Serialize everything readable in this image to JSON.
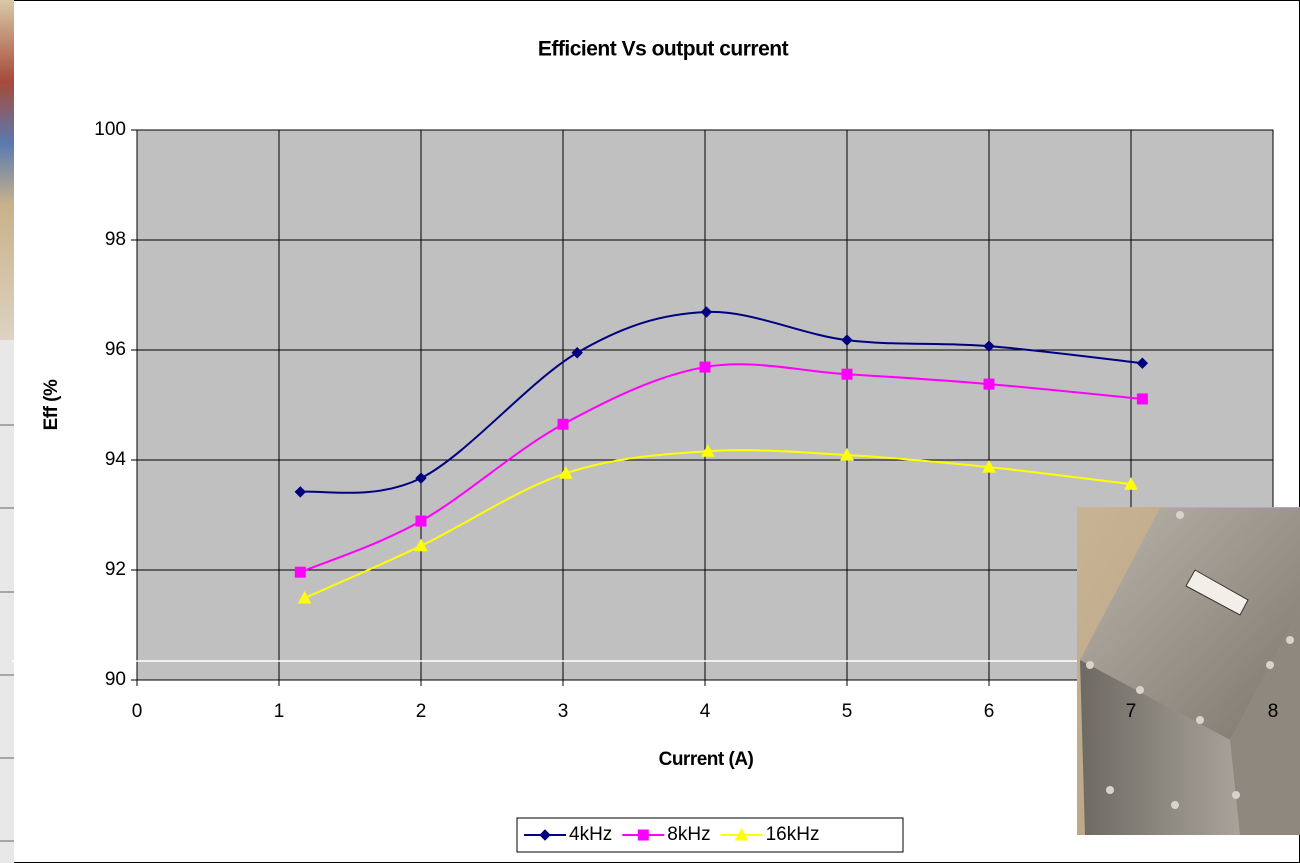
{
  "chart_data": {
    "type": "line",
    "title": "Efficient Vs output current",
    "x_label": "Current (A)",
    "y_label": "Eff (%",
    "xlim": [
      0,
      8
    ],
    "xticks": [
      0,
      1,
      2,
      3,
      4,
      5,
      6,
      7,
      8
    ],
    "ylim": [
      90,
      100
    ],
    "yticks": [
      90,
      92,
      94,
      96,
      98,
      100
    ],
    "grid": true,
    "smooth": true,
    "legend": "bottom",
    "series": [
      {
        "name": "4kHz",
        "color": "#000080",
        "marker": "diamond",
        "x": [
          1.15,
          2.0,
          3.1,
          4.01,
          5.0,
          6.0,
          7.08
        ],
        "values": [
          93.42,
          93.67,
          95.95,
          96.69,
          96.18,
          96.07,
          95.76
        ]
      },
      {
        "name": "8kHz",
        "color": "#ff00ff",
        "marker": "square",
        "x": [
          1.15,
          2.0,
          3.0,
          4.0,
          5.0,
          6.0,
          7.08
        ],
        "values": [
          91.96,
          92.89,
          94.65,
          95.69,
          95.56,
          95.38,
          95.11
        ]
      },
      {
        "name": "16kHz",
        "color": "#ffff00",
        "marker": "triangle",
        "x": [
          1.18,
          2.0,
          3.02,
          4.02,
          5.0,
          6.0,
          7.0
        ],
        "values": [
          91.49,
          92.44,
          93.76,
          94.16,
          94.09,
          93.87,
          93.56
        ]
      }
    ]
  }
}
